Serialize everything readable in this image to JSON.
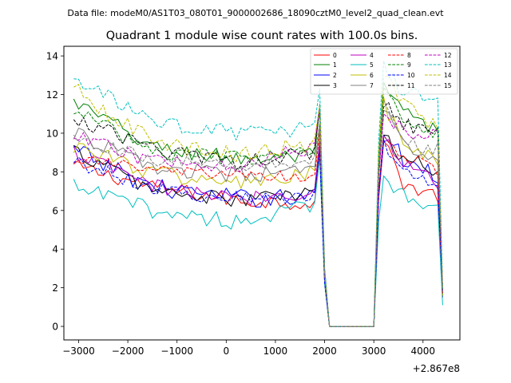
{
  "header": {
    "suptitle": "Data file: modeM0/AS1T03_080T01_9000002686_18090cztM0_level2_quad_clean.evt"
  },
  "chart_data": {
    "type": "line",
    "title": "Quadrant 1 module wise count rates with 100.0s bins.",
    "xlabel": "",
    "ylabel": "",
    "x_offset_label": "+2.867e8",
    "xlim": [
      -3300,
      4750
    ],
    "ylim": [
      -0.7,
      14.5
    ],
    "x_ticks": [
      -3000,
      -2000,
      -1000,
      0,
      1000,
      2000,
      3000,
      4000
    ],
    "x_tick_labels": [
      "−3000",
      "−2000",
      "−1000",
      "0",
      "1000",
      "2000",
      "3000",
      "4000"
    ],
    "y_ticks": [
      0,
      2,
      4,
      6,
      8,
      10,
      12,
      14
    ],
    "y_tick_labels": [
      "0",
      "2",
      "4",
      "6",
      "8",
      "10",
      "12",
      "14"
    ],
    "grid": false,
    "legend_position": "top-right",
    "legend_columns": 4,
    "gap_segments": [
      {
        "x": [
          1900,
          2000,
          2100
        ],
        "fraction": [
          1.0,
          0.25,
          0.0
        ]
      },
      {
        "x": [
          3000,
          3100,
          3200
        ],
        "fraction": [
          0.0,
          0.7,
          1.0
        ]
      }
    ],
    "off_interval": [
      2100,
      3000
    ],
    "series": [
      {
        "name": "0",
        "color": "#ff0000",
        "dashed": false,
        "seg1": [
          8.3,
          7.2,
          6.5,
          6.4
        ],
        "seg2": [
          9.7,
          7.5,
          7.0,
          6.8
        ],
        "end": 1.6,
        "amp": 0.4
      },
      {
        "name": "1",
        "color": "#008000",
        "dashed": false,
        "seg1": [
          11.6,
          9.2,
          8.7,
          8.8
        ],
        "seg2": [
          12.4,
          11.2,
          10.5,
          10.0
        ],
        "end": 1.5,
        "amp": 0.45
      },
      {
        "name": "2",
        "color": "#0000ff",
        "dashed": false,
        "seg1": [
          9.1,
          7.2,
          6.6,
          6.8
        ],
        "seg2": [
          10.2,
          8.7,
          8.4,
          7.8
        ],
        "end": 1.6,
        "amp": 0.5
      },
      {
        "name": "3",
        "color": "#000000",
        "dashed": false,
        "seg1": [
          9.1,
          7.0,
          6.5,
          7.0
        ],
        "seg2": [
          9.8,
          8.7,
          8.4,
          7.9
        ],
        "end": 1.6,
        "amp": 0.4
      },
      {
        "name": "4",
        "color": "#bf00bf",
        "dashed": false,
        "seg1": [
          9.0,
          7.2,
          6.6,
          7.0
        ],
        "seg2": [
          9.9,
          8.5,
          8.0,
          7.4
        ],
        "end": 1.5,
        "amp": 0.4
      },
      {
        "name": "5",
        "color": "#00bfbf",
        "dashed": false,
        "seg1": [
          7.2,
          6.0,
          5.4,
          6.3
        ],
        "seg2": [
          7.8,
          6.9,
          6.6,
          6.1
        ],
        "end": 1.1,
        "amp": 0.45
      },
      {
        "name": "6",
        "color": "#bfbf00",
        "dashed": false,
        "seg1": [
          9.4,
          7.9,
          7.4,
          7.9
        ],
        "seg2": [
          11.5,
          9.6,
          8.9,
          8.6
        ],
        "end": 1.6,
        "amp": 0.45
      },
      {
        "name": "7",
        "color": "#808080",
        "dashed": false,
        "seg1": [
          10.0,
          8.2,
          7.8,
          8.1
        ],
        "seg2": [
          11.3,
          9.4,
          8.9,
          8.4
        ],
        "end": 1.7,
        "amp": 0.4
      },
      {
        "name": "8",
        "color": "#ff0000",
        "dashed": true,
        "seg1": [
          8.7,
          8.1,
          7.8,
          7.7
        ],
        "seg2": [
          9.7,
          8.9,
          8.5,
          7.9
        ],
        "end": 1.7,
        "amp": 0.3
      },
      {
        "name": "9",
        "color": "#008000",
        "dashed": true,
        "seg1": [
          11.2,
          9.0,
          8.7,
          9.0
        ],
        "seg2": [
          12.6,
          11.0,
          10.3,
          10.0
        ],
        "end": 2.0,
        "amp": 0.4
      },
      {
        "name": "10",
        "color": "#0000ff",
        "dashed": true,
        "seg1": [
          8.6,
          7.1,
          6.6,
          6.8
        ],
        "seg2": [
          9.6,
          8.1,
          7.9,
          7.4
        ],
        "end": 1.8,
        "amp": 0.4
      },
      {
        "name": "11",
        "color": "#000000",
        "dashed": true,
        "seg1": [
          10.8,
          9.1,
          8.5,
          9.1
        ],
        "seg2": [
          11.7,
          10.5,
          10.2,
          10.0
        ],
        "end": 1.8,
        "amp": 0.4
      },
      {
        "name": "12",
        "color": "#bf00bf",
        "dashed": true,
        "seg1": [
          9.8,
          8.5,
          8.4,
          9.3
        ],
        "seg2": [
          11.0,
          10.2,
          10.0,
          10.2
        ],
        "end": 1.8,
        "amp": 0.4
      },
      {
        "name": "13",
        "color": "#00bfbf",
        "dashed": true,
        "seg1": [
          12.8,
          10.5,
          10.0,
          10.3
        ],
        "seg2": [
          13.4,
          12.2,
          11.8,
          11.5
        ],
        "end": 2.0,
        "amp": 0.4
      },
      {
        "name": "14",
        "color": "#bfbf00",
        "dashed": true,
        "seg1": [
          12.3,
          9.4,
          8.9,
          9.5
        ],
        "seg2": [
          13.0,
          11.6,
          10.8,
          10.3
        ],
        "end": 1.9,
        "amp": 0.45
      },
      {
        "name": "15",
        "color": "#808080",
        "dashed": true,
        "seg1": [
          9.8,
          8.6,
          8.3,
          8.6
        ],
        "seg2": [
          11.5,
          9.8,
          9.3,
          9.2
        ],
        "end": 1.8,
        "amp": 0.35
      }
    ]
  }
}
